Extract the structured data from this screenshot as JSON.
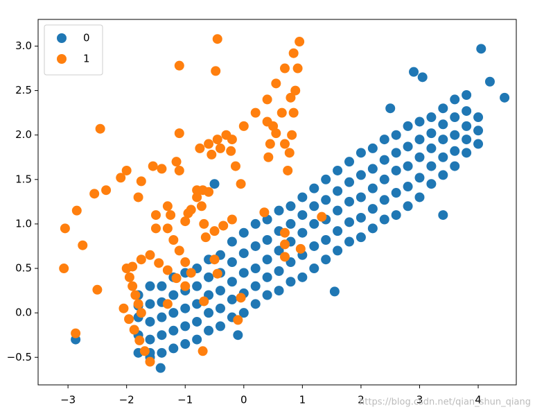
{
  "chart_data": {
    "type": "scatter",
    "xlim": [
      -3.51,
      4.65
    ],
    "ylim": [
      -0.81,
      3.3
    ],
    "xticks": [
      {
        "value": -3,
        "label": "−3"
      },
      {
        "value": -2,
        "label": "−2"
      },
      {
        "value": -1,
        "label": "−1"
      },
      0,
      1,
      2,
      3,
      4
    ],
    "yticks": [
      {
        "value": -0.5,
        "label": "−0.5"
      },
      {
        "value": 0.0,
        "label": "0.0"
      },
      {
        "value": 0.5,
        "label": "0.5"
      },
      {
        "value": 1.0,
        "label": "1.0"
      },
      {
        "value": 1.5,
        "label": "1.5"
      },
      {
        "value": 2.0,
        "label": "2.0"
      },
      {
        "value": 2.5,
        "label": "2.5"
      },
      {
        "value": 3.0,
        "label": "3.0"
      }
    ],
    "legend": "upper left",
    "watermark": "https://blog.csdn.net/qian_shun_qiang",
    "series": [
      {
        "name": "0",
        "color": "#1f77b4",
        "points": [
          [
            -1.8,
            -0.45
          ],
          [
            -1.8,
            -0.25
          ],
          [
            -1.8,
            -0.05
          ],
          [
            -1.8,
            0.08
          ],
          [
            -1.8,
            0.2
          ],
          [
            -1.6,
            -0.5
          ],
          [
            -1.6,
            -0.3
          ],
          [
            -1.6,
            -0.1
          ],
          [
            -1.6,
            0.1
          ],
          [
            -1.6,
            0.3
          ],
          [
            -1.4,
            -0.45
          ],
          [
            -1.4,
            -0.25
          ],
          [
            -1.4,
            -0.05
          ],
          [
            -1.4,
            0.12
          ],
          [
            -1.4,
            0.3
          ],
          [
            -1.2,
            -0.4
          ],
          [
            -1.2,
            -0.2
          ],
          [
            -1.2,
            0.0
          ],
          [
            -1.2,
            0.2
          ],
          [
            -1.2,
            0.4
          ],
          [
            -1.0,
            -0.35
          ],
          [
            -1.0,
            -0.15
          ],
          [
            -1.0,
            0.05
          ],
          [
            -1.0,
            0.25
          ],
          [
            -1.0,
            0.45
          ],
          [
            -0.8,
            -0.3
          ],
          [
            -0.8,
            -0.1
          ],
          [
            -0.8,
            0.1
          ],
          [
            -0.8,
            0.3
          ],
          [
            -0.8,
            0.5
          ],
          [
            -0.6,
            -0.2
          ],
          [
            -0.6,
            0.0
          ],
          [
            -0.6,
            0.2
          ],
          [
            -0.6,
            0.4
          ],
          [
            -0.6,
            0.6
          ],
          [
            -0.4,
            -0.15
          ],
          [
            -0.4,
            0.05
          ],
          [
            -0.4,
            0.25
          ],
          [
            -0.4,
            0.45
          ],
          [
            -0.4,
            0.65
          ],
          [
            -0.2,
            -0.05
          ],
          [
            -0.2,
            0.15
          ],
          [
            -0.2,
            0.35
          ],
          [
            -0.2,
            0.57
          ],
          [
            -0.2,
            0.8
          ],
          [
            0.0,
            0.0
          ],
          [
            0.0,
            0.22
          ],
          [
            0.0,
            0.45
          ],
          [
            0.0,
            0.67
          ],
          [
            0.0,
            0.9
          ],
          [
            0.2,
            0.1
          ],
          [
            0.2,
            0.3
          ],
          [
            0.2,
            0.5
          ],
          [
            0.2,
            0.75
          ],
          [
            0.2,
            1.0
          ],
          [
            0.4,
            0.2
          ],
          [
            0.4,
            0.4
          ],
          [
            0.4,
            0.6
          ],
          [
            0.4,
            0.82
          ],
          [
            0.4,
            1.05
          ],
          [
            0.6,
            0.25
          ],
          [
            0.6,
            0.47
          ],
          [
            0.6,
            0.7
          ],
          [
            0.6,
            0.92
          ],
          [
            0.6,
            1.15
          ],
          [
            0.8,
            0.35
          ],
          [
            0.8,
            0.57
          ],
          [
            0.8,
            0.8
          ],
          [
            0.8,
            1.0
          ],
          [
            0.8,
            1.2
          ],
          [
            1.0,
            0.4
          ],
          [
            1.0,
            0.65
          ],
          [
            1.0,
            0.9
          ],
          [
            1.0,
            1.1
          ],
          [
            1.0,
            1.3
          ],
          [
            1.2,
            0.5
          ],
          [
            1.2,
            0.75
          ],
          [
            1.2,
            1.0
          ],
          [
            1.2,
            1.2
          ],
          [
            1.2,
            1.4
          ],
          [
            1.4,
            0.6
          ],
          [
            1.4,
            0.82
          ],
          [
            1.4,
            1.05
          ],
          [
            1.4,
            1.27
          ],
          [
            1.4,
            1.5
          ],
          [
            1.6,
            0.7
          ],
          [
            1.6,
            0.92
          ],
          [
            1.6,
            1.15
          ],
          [
            1.6,
            1.37
          ],
          [
            1.6,
            1.6
          ],
          [
            1.8,
            0.8
          ],
          [
            1.8,
            1.02
          ],
          [
            1.8,
            1.25
          ],
          [
            1.8,
            1.47
          ],
          [
            1.8,
            1.7
          ],
          [
            2.0,
            0.85
          ],
          [
            2.0,
            1.07
          ],
          [
            2.0,
            1.3
          ],
          [
            2.0,
            1.55
          ],
          [
            2.0,
            1.8
          ],
          [
            2.2,
            0.95
          ],
          [
            2.2,
            1.17
          ],
          [
            2.2,
            1.4
          ],
          [
            2.2,
            1.62
          ],
          [
            2.2,
            1.85
          ],
          [
            2.4,
            1.05
          ],
          [
            2.4,
            1.27
          ],
          [
            2.4,
            1.5
          ],
          [
            2.4,
            1.72
          ],
          [
            2.4,
            1.95
          ],
          [
            2.6,
            1.1
          ],
          [
            2.6,
            1.35
          ],
          [
            2.6,
            1.6
          ],
          [
            2.6,
            1.8
          ],
          [
            2.6,
            2.0
          ],
          [
            2.8,
            1.2
          ],
          [
            2.8,
            1.42
          ],
          [
            2.8,
            1.65
          ],
          [
            2.8,
            1.87
          ],
          [
            2.8,
            2.1
          ],
          [
            3.0,
            1.3
          ],
          [
            3.0,
            1.52
          ],
          [
            3.0,
            1.75
          ],
          [
            3.0,
            1.95
          ],
          [
            3.0,
            2.15
          ],
          [
            3.2,
            1.45
          ],
          [
            3.2,
            1.65
          ],
          [
            3.2,
            1.85
          ],
          [
            3.2,
            2.02
          ],
          [
            3.2,
            2.2
          ],
          [
            3.4,
            1.55
          ],
          [
            3.4,
            1.75
          ],
          [
            3.4,
            1.95
          ],
          [
            3.4,
            2.12
          ],
          [
            3.4,
            2.3
          ],
          [
            3.6,
            1.65
          ],
          [
            3.6,
            1.82
          ],
          [
            3.6,
            2.0
          ],
          [
            3.6,
            2.2
          ],
          [
            3.6,
            2.4
          ],
          [
            3.8,
            1.8
          ],
          [
            3.8,
            1.95
          ],
          [
            3.8,
            2.1
          ],
          [
            3.8,
            2.27
          ],
          [
            3.8,
            2.45
          ],
          [
            4.0,
            1.9
          ],
          [
            4.0,
            2.05
          ],
          [
            4.0,
            2.2
          ],
          [
            4.05,
            2.97
          ],
          [
            4.45,
            2.42
          ],
          [
            2.9,
            2.71
          ],
          [
            3.05,
            2.65
          ],
          [
            -2.87,
            -0.3
          ],
          [
            -1.42,
            -0.62
          ],
          [
            3.4,
            1.1
          ],
          [
            1.55,
            0.24
          ],
          [
            -0.1,
            -0.25
          ],
          [
            4.2,
            2.6
          ],
          [
            -0.5,
            1.45
          ],
          [
            2.5,
            2.3
          ],
          [
            -1.6,
            -0.45
          ]
        ]
      },
      {
        "name": "1",
        "color": "#ff7f0e",
        "points": [
          [
            -3.07,
            0.5
          ],
          [
            -3.05,
            0.95
          ],
          [
            -2.85,
            1.15
          ],
          [
            -2.75,
            0.76
          ],
          [
            -2.87,
            -0.23
          ],
          [
            -2.45,
            2.07
          ],
          [
            -2.55,
            1.34
          ],
          [
            -2.35,
            1.38
          ],
          [
            -2.1,
            1.52
          ],
          [
            -2.0,
            1.6
          ],
          [
            -1.55,
            1.65
          ],
          [
            -1.4,
            1.62
          ],
          [
            -1.75,
            1.48
          ],
          [
            -1.8,
            1.3
          ],
          [
            -1.15,
            1.7
          ],
          [
            -1.1,
            1.6
          ],
          [
            -1.1,
            2.02
          ],
          [
            -1.1,
            2.78
          ],
          [
            -0.45,
            3.08
          ],
          [
            -0.48,
            2.72
          ],
          [
            -2.5,
            0.26
          ],
          [
            0.35,
            1.13
          ],
          [
            0.7,
            0.9
          ],
          [
            0.7,
            0.77
          ],
          [
            0.7,
            0.63
          ],
          [
            0.97,
            0.72
          ],
          [
            1.33,
            1.08
          ],
          [
            -0.45,
            0.44
          ],
          [
            -0.5,
            0.6
          ],
          [
            -0.68,
            0.13
          ],
          [
            -0.05,
            0.17
          ],
          [
            -0.1,
            -0.08
          ],
          [
            -0.7,
            -0.43
          ],
          [
            -1.3,
            0.1
          ],
          [
            -1.5,
            1.1
          ],
          [
            -1.3,
            1.2
          ],
          [
            -1.25,
            1.1
          ],
          [
            -0.95,
            1.12
          ],
          [
            -1.5,
            0.95
          ],
          [
            -2.05,
            0.05
          ],
          [
            -1.96,
            -0.07
          ],
          [
            -1.87,
            -0.19
          ],
          [
            -1.78,
            -0.31
          ],
          [
            -1.69,
            -0.43
          ],
          [
            -1.6,
            -0.55
          ],
          [
            -2.0,
            0.5
          ],
          [
            -1.95,
            0.4
          ],
          [
            -1.9,
            0.3
          ],
          [
            -1.85,
            0.2
          ],
          [
            -1.8,
            0.1
          ],
          [
            -1.75,
            0.0
          ],
          [
            -1.9,
            0.52
          ],
          [
            -1.75,
            0.6
          ],
          [
            -1.6,
            0.65
          ],
          [
            -1.45,
            0.56
          ],
          [
            -1.3,
            0.48
          ],
          [
            -1.15,
            0.39
          ],
          [
            -1.0,
            0.3
          ],
          [
            -1.3,
            0.95
          ],
          [
            -1.2,
            0.82
          ],
          [
            -1.1,
            0.7
          ],
          [
            -1.0,
            0.57
          ],
          [
            -0.9,
            0.45
          ],
          [
            -1.0,
            1.03
          ],
          [
            -0.9,
            1.16
          ],
          [
            -0.8,
            1.3
          ],
          [
            -0.72,
            1.2
          ],
          [
            -0.68,
            1.0
          ],
          [
            -0.65,
            0.85
          ],
          [
            -0.5,
            0.92
          ],
          [
            -0.35,
            0.98
          ],
          [
            -0.2,
            1.05
          ],
          [
            -0.8,
            1.38
          ],
          [
            -0.7,
            1.38
          ],
          [
            -0.6,
            1.36
          ],
          [
            -0.75,
            1.85
          ],
          [
            -0.6,
            1.9
          ],
          [
            -0.45,
            1.95
          ],
          [
            -0.3,
            2.0
          ],
          [
            -0.22,
            1.82
          ],
          [
            -0.14,
            1.65
          ],
          [
            -0.05,
            1.45
          ],
          [
            -0.55,
            1.78
          ],
          [
            -0.4,
            1.85
          ],
          [
            -0.2,
            1.95
          ],
          [
            0.0,
            2.1
          ],
          [
            0.2,
            2.25
          ],
          [
            0.4,
            2.4
          ],
          [
            0.55,
            2.58
          ],
          [
            0.7,
            2.75
          ],
          [
            0.85,
            2.92
          ],
          [
            0.95,
            3.05
          ],
          [
            0.92,
            2.75
          ],
          [
            0.88,
            2.5
          ],
          [
            0.85,
            2.25
          ],
          [
            0.82,
            2.0
          ],
          [
            0.78,
            1.8
          ],
          [
            0.75,
            1.6
          ],
          [
            0.42,
            1.75
          ],
          [
            0.45,
            1.9
          ],
          [
            0.5,
            2.1
          ],
          [
            0.65,
            2.25
          ],
          [
            0.8,
            2.42
          ],
          [
            0.4,
            2.15
          ],
          [
            0.55,
            2.02
          ],
          [
            0.7,
            1.9
          ]
        ]
      }
    ]
  }
}
